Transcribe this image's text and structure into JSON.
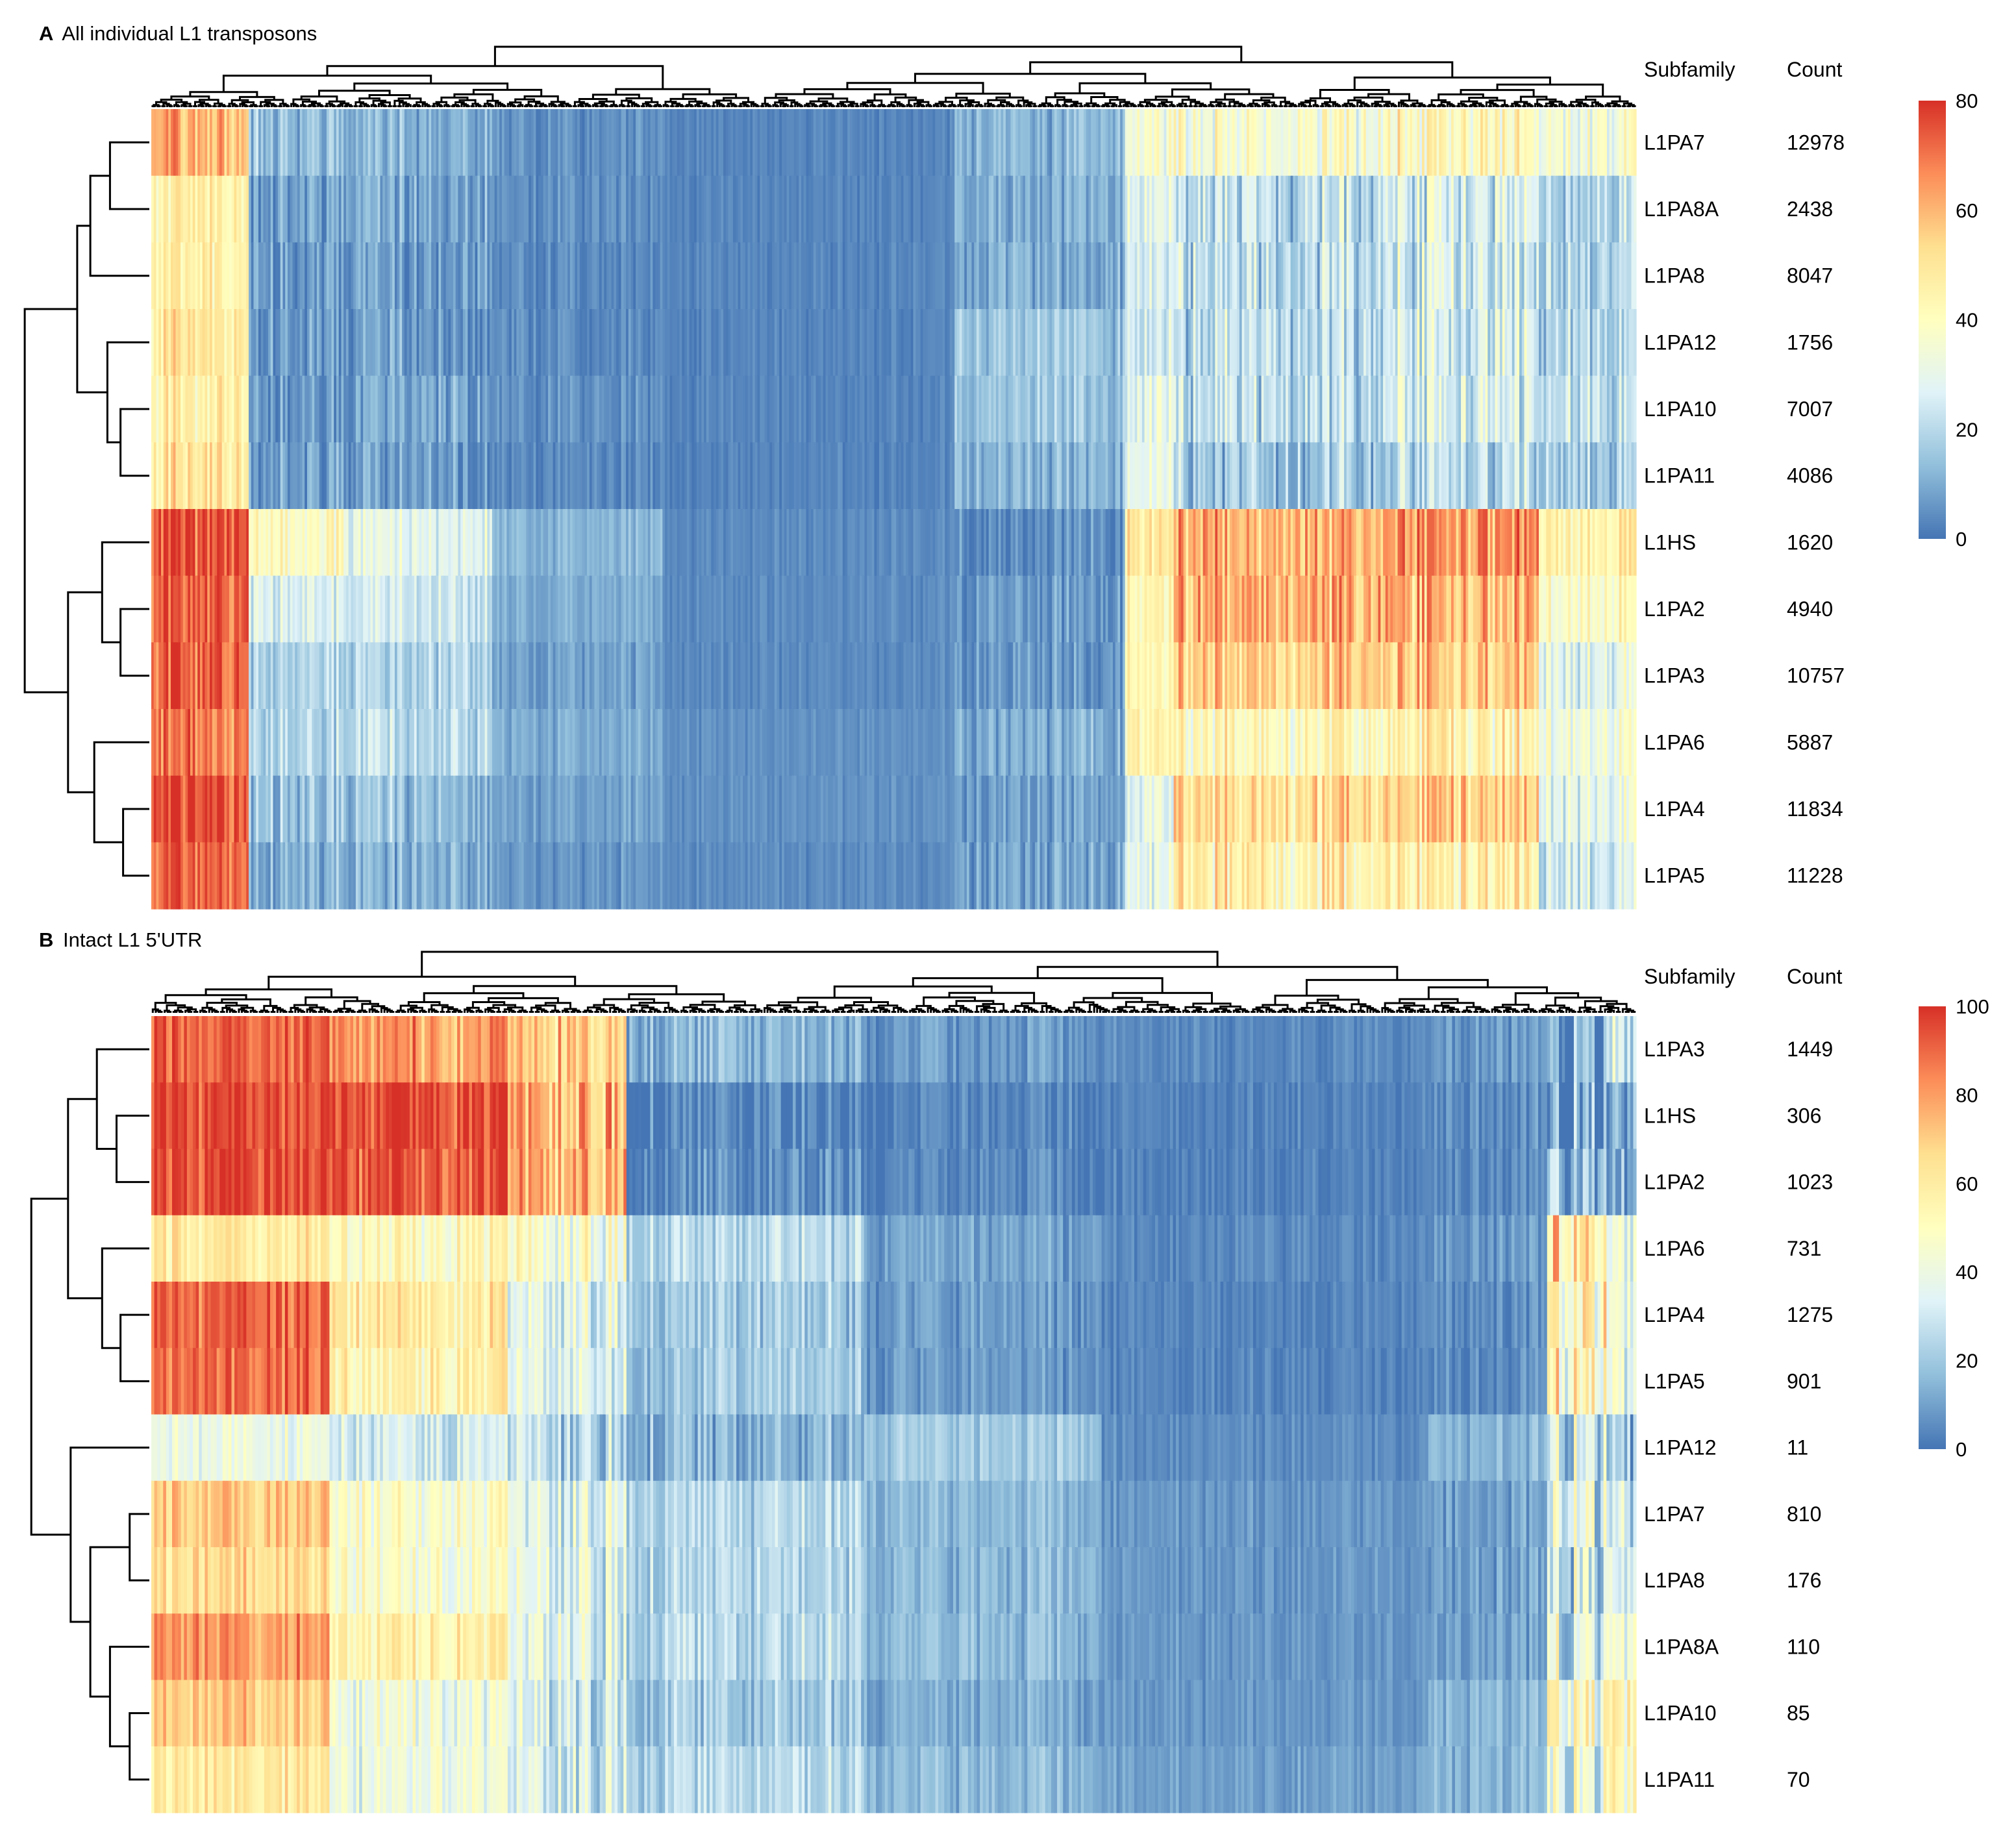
{
  "chart_data": [
    {
      "type": "heatmap",
      "panel_letter": "A",
      "title": "All individual L1 transposons",
      "row_header_subfamily": "Subfamily",
      "row_header_count": "Count",
      "rows": [
        {
          "subfamily": "L1PA7",
          "count": "12978"
        },
        {
          "subfamily": "L1PA8A",
          "count": "2438"
        },
        {
          "subfamily": "L1PA8",
          "count": "8047"
        },
        {
          "subfamily": "L1PA12",
          "count": "1756"
        },
        {
          "subfamily": "L1PA10",
          "count": "7007"
        },
        {
          "subfamily": "L1PA11",
          "count": "4086"
        },
        {
          "subfamily": "L1HS",
          "count": "1620"
        },
        {
          "subfamily": "L1PA2",
          "count": "4940"
        },
        {
          "subfamily": "L1PA3",
          "count": "10757"
        },
        {
          "subfamily": "L1PA6",
          "count": "5887"
        },
        {
          "subfamily": "L1PA4",
          "count": "11834"
        },
        {
          "subfamily": "L1PA5",
          "count": "11228"
        }
      ],
      "color_scale": {
        "min": 0,
        "max": 80,
        "ticks": [
          "80",
          "60",
          "40",
          "20",
          "0"
        ],
        "colors": [
          "#4575b4",
          "#91bfdb",
          "#e0f3f8",
          "#ffffbf",
          "#fee090",
          "#fc8d59",
          "#d73027"
        ]
      },
      "column_segments": [
        {
          "cols": 40,
          "profile": [
            60,
            45,
            45,
            48,
            45,
            48,
            75,
            72,
            72,
            68,
            75,
            72
          ],
          "var": 12
        },
        {
          "cols": 40,
          "profile": [
            15,
            10,
            8,
            8,
            8,
            8,
            40,
            28,
            20,
            20,
            15,
            12
          ],
          "var": 10
        },
        {
          "cols": 60,
          "profile": [
            12,
            10,
            8,
            8,
            10,
            8,
            30,
            25,
            20,
            22,
            15,
            12
          ],
          "var": 10
        },
        {
          "cols": 70,
          "profile": [
            5,
            5,
            4,
            4,
            5,
            4,
            12,
            10,
            8,
            10,
            8,
            6
          ],
          "var": 5
        },
        {
          "cols": 120,
          "profile": [
            3,
            3,
            3,
            3,
            3,
            3,
            4,
            4,
            4,
            5,
            5,
            4
          ],
          "var": 3
        },
        {
          "cols": 70,
          "profile": [
            12,
            10,
            10,
            15,
            15,
            12,
            4,
            6,
            6,
            10,
            8,
            8
          ],
          "var": 8
        },
        {
          "cols": 20,
          "profile": [
            35,
            30,
            25,
            25,
            30,
            30,
            50,
            45,
            45,
            45,
            30,
            30
          ],
          "var": 10
        },
        {
          "cols": 90,
          "profile": [
            35,
            20,
            20,
            20,
            20,
            15,
            60,
            60,
            55,
            40,
            50,
            45
          ],
          "var": 15
        },
        {
          "cols": 60,
          "profile": [
            40,
            25,
            25,
            25,
            25,
            20,
            65,
            60,
            55,
            45,
            55,
            45
          ],
          "var": 15
        },
        {
          "cols": 40,
          "profile": [
            35,
            20,
            20,
            20,
            22,
            18,
            45,
            40,
            30,
            35,
            30,
            25
          ],
          "var": 12
        }
      ]
    },
    {
      "type": "heatmap",
      "panel_letter": "B",
      "title": "Intact L1 5'UTR",
      "row_header_subfamily": "Subfamily",
      "row_header_count": "Count",
      "rows": [
        {
          "subfamily": "L1PA3",
          "count": "1449"
        },
        {
          "subfamily": "L1HS",
          "count": "306"
        },
        {
          "subfamily": "L1PA2",
          "count": "1023"
        },
        {
          "subfamily": "L1PA6",
          "count": "731"
        },
        {
          "subfamily": "L1PA4",
          "count": "1275"
        },
        {
          "subfamily": "L1PA5",
          "count": "901"
        },
        {
          "subfamily": "L1PA12",
          "count": "11"
        },
        {
          "subfamily": "L1PA7",
          "count": "810"
        },
        {
          "subfamily": "L1PA8",
          "count": "176"
        },
        {
          "subfamily": "L1PA8A",
          "count": "110"
        },
        {
          "subfamily": "L1PA10",
          "count": "85"
        },
        {
          "subfamily": "L1PA11",
          "count": "70"
        }
      ],
      "color_scale": {
        "min": 0,
        "max": 100,
        "ticks": [
          "100",
          "80",
          "60",
          "40",
          "20",
          "0"
        ],
        "colors": [
          "#4575b4",
          "#91bfdb",
          "#e0f3f8",
          "#ffffbf",
          "#fee090",
          "#fc8d59",
          "#d73027"
        ]
      },
      "column_segments": [
        {
          "cols": 60,
          "profile": [
            90,
            95,
            95,
            60,
            90,
            88,
            40,
            70,
            65,
            80,
            70,
            60
          ],
          "var": 12
        },
        {
          "cols": 60,
          "profile": [
            80,
            95,
            92,
            50,
            60,
            55,
            30,
            45,
            45,
            55,
            40,
            40
          ],
          "var": 15
        },
        {
          "cols": 40,
          "profile": [
            70,
            75,
            75,
            45,
            35,
            35,
            25,
            35,
            35,
            35,
            30,
            30
          ],
          "var": 18
        },
        {
          "cols": 80,
          "profile": [
            15,
            3,
            5,
            25,
            20,
            20,
            15,
            25,
            25,
            25,
            20,
            25
          ],
          "var": 12
        },
        {
          "cols": 80,
          "profile": [
            8,
            3,
            4,
            10,
            8,
            8,
            20,
            15,
            15,
            15,
            12,
            15
          ],
          "var": 8
        },
        {
          "cols": 110,
          "profile": [
            5,
            3,
            3,
            5,
            4,
            4,
            6,
            8,
            8,
            8,
            8,
            10
          ],
          "var": 5
        },
        {
          "cols": 40,
          "profile": [
            8,
            5,
            5,
            8,
            5,
            5,
            15,
            10,
            10,
            10,
            15,
            15
          ],
          "var": 8
        },
        {
          "cols": 20,
          "profile": [
            10,
            8,
            20,
            60,
            55,
            50,
            30,
            35,
            30,
            35,
            50,
            40
          ],
          "var": 25
        },
        {
          "cols": 10,
          "profile": [
            30,
            10,
            10,
            40,
            35,
            35,
            20,
            30,
            35,
            45,
            50,
            50
          ],
          "var": 20
        }
      ]
    }
  ]
}
